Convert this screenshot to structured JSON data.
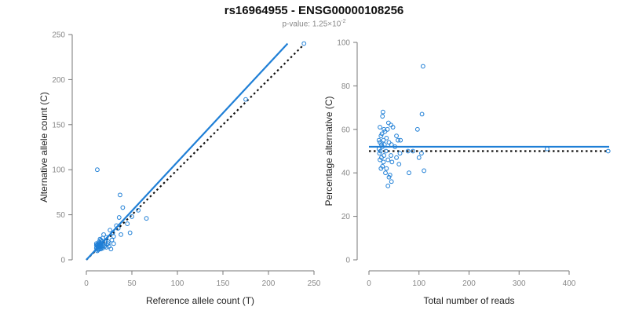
{
  "title": "rs16964955 - ENSG00000108256",
  "subtitle": {
    "prefix": "p-value: 1.25×10",
    "exponent": "-2"
  },
  "colors": {
    "series": "#1f7fd6",
    "reference_line": "#111111",
    "axis": "#777777",
    "tick_label": "#888888"
  },
  "chart_data": [
    {
      "type": "scatter",
      "xlabel": "Reference allele count (T)",
      "ylabel": "Alternative allele count (C)",
      "xlim": [
        0,
        250
      ],
      "ylim": [
        0,
        250
      ],
      "xticks": [
        0,
        50,
        100,
        150,
        200,
        250
      ],
      "yticks": [
        0,
        50,
        100,
        150,
        200,
        250
      ],
      "grid": false,
      "points": [
        [
          12,
          100
        ],
        [
          37,
          72
        ],
        [
          40,
          58
        ],
        [
          36,
          47
        ],
        [
          57,
          55
        ],
        [
          66,
          46
        ],
        [
          45,
          40
        ],
        [
          48,
          30
        ],
        [
          38,
          28
        ],
        [
          33,
          38
        ],
        [
          35,
          35
        ],
        [
          29,
          30
        ],
        [
          26,
          33
        ],
        [
          22,
          25
        ],
        [
          20,
          18
        ],
        [
          25,
          15
        ],
        [
          27,
          12
        ],
        [
          30,
          18
        ],
        [
          24,
          20
        ],
        [
          19,
          28
        ],
        [
          18,
          24
        ],
        [
          17,
          20
        ],
        [
          16,
          22
        ],
        [
          16,
          18
        ],
        [
          15,
          17
        ],
        [
          14,
          15
        ],
        [
          13,
          14
        ],
        [
          12,
          12
        ],
        [
          12,
          10
        ],
        [
          11,
          13
        ],
        [
          13,
          16
        ],
        [
          14,
          12
        ],
        [
          15,
          13
        ],
        [
          12,
          15
        ],
        [
          11,
          16
        ],
        [
          13,
          18
        ],
        [
          14,
          20
        ],
        [
          15,
          23
        ],
        [
          16,
          15
        ],
        [
          17,
          14
        ],
        [
          18,
          13
        ],
        [
          19,
          16
        ],
        [
          20,
          15
        ],
        [
          21,
          20
        ],
        [
          13,
          11
        ],
        [
          12,
          17
        ],
        [
          11,
          18
        ],
        [
          14,
          17
        ],
        [
          15,
          19
        ],
        [
          16,
          12
        ],
        [
          22,
          14
        ],
        [
          24,
          18
        ],
        [
          28,
          22
        ],
        [
          30,
          26
        ],
        [
          50,
          48
        ],
        [
          175,
          178
        ],
        [
          239,
          240
        ]
      ],
      "fit_line": [
        [
          0,
          0
        ],
        [
          221,
          240
        ]
      ],
      "reference_line": [
        [
          0,
          0
        ],
        [
          238,
          238
        ]
      ]
    },
    {
      "type": "scatter",
      "xlabel": "Total number of reads",
      "ylabel": "Percentage alternative (C)",
      "xlim": [
        0,
        480
      ],
      "ylim": [
        0,
        100
      ],
      "xticks": [
        0,
        100,
        200,
        300,
        400
      ],
      "yticks": [
        0,
        20,
        40,
        60,
        80,
        100
      ],
      "grid": false,
      "points": [
        [
          108,
          89
        ],
        [
          106,
          67
        ],
        [
          28,
          68
        ],
        [
          27,
          66
        ],
        [
          39,
          63
        ],
        [
          44,
          62
        ],
        [
          22,
          61
        ],
        [
          30,
          60
        ],
        [
          37,
          60
        ],
        [
          32,
          59
        ],
        [
          26,
          58
        ],
        [
          48,
          61
        ],
        [
          55,
          57
        ],
        [
          24,
          57
        ],
        [
          35,
          56
        ],
        [
          29,
          55
        ],
        [
          63,
          55
        ],
        [
          58,
          55
        ],
        [
          20,
          55
        ],
        [
          22,
          54
        ],
        [
          25,
          53
        ],
        [
          31,
          53
        ],
        [
          40,
          54
        ],
        [
          45,
          53
        ],
        [
          52,
          52
        ],
        [
          27,
          52
        ],
        [
          20,
          51
        ],
        [
          23,
          50
        ],
        [
          34,
          50
        ],
        [
          78,
          50
        ],
        [
          88,
          50
        ],
        [
          62,
          49
        ],
        [
          21,
          49
        ],
        [
          30,
          48
        ],
        [
          44,
          48
        ],
        [
          55,
          47
        ],
        [
          25,
          47
        ],
        [
          100,
          47
        ],
        [
          105,
          49
        ],
        [
          97,
          60
        ],
        [
          22,
          46
        ],
        [
          29,
          45
        ],
        [
          38,
          46
        ],
        [
          46,
          45
        ],
        [
          60,
          44
        ],
        [
          27,
          43
        ],
        [
          24,
          42
        ],
        [
          35,
          42
        ],
        [
          110,
          41
        ],
        [
          33,
          40
        ],
        [
          80,
          40
        ],
        [
          42,
          39
        ],
        [
          40,
          38
        ],
        [
          45,
          36
        ],
        [
          38,
          34
        ],
        [
          356,
          51
        ],
        [
          478,
          50
        ]
      ],
      "fit_line": [
        [
          0,
          52
        ],
        [
          480,
          52
        ]
      ],
      "reference_line": [
        [
          0,
          50
        ],
        [
          480,
          50
        ]
      ]
    }
  ]
}
